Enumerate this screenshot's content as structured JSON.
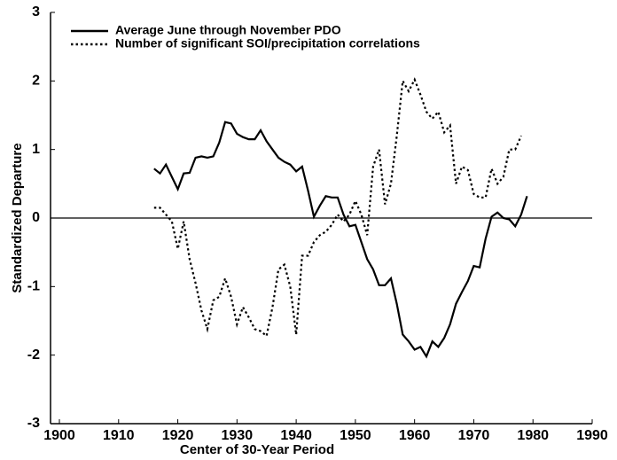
{
  "chart_data": {
    "type": "line",
    "xlabel": "Center of 30-Year Period",
    "ylabel": "Standardized Departure",
    "x": [
      1916,
      1917,
      1918,
      1919,
      1920,
      1921,
      1922,
      1923,
      1924,
      1925,
      1926,
      1927,
      1928,
      1929,
      1930,
      1931,
      1932,
      1933,
      1934,
      1935,
      1936,
      1937,
      1938,
      1939,
      1940,
      1941,
      1942,
      1943,
      1944,
      1945,
      1946,
      1947,
      1948,
      1949,
      1950,
      1951,
      1952,
      1953,
      1954,
      1955,
      1956,
      1957,
      1958,
      1959,
      1960,
      1961,
      1962,
      1963,
      1964,
      1965,
      1966,
      1967,
      1968,
      1969,
      1970,
      1971,
      1972,
      1973,
      1974,
      1975,
      1976,
      1977,
      1978,
      1979
    ],
    "series": [
      {
        "name": "Average June through November PDO",
        "color": "#000000",
        "style": "solid",
        "values": [
          0.72,
          0.65,
          0.78,
          0.6,
          0.42,
          0.65,
          0.66,
          0.88,
          0.9,
          0.88,
          0.9,
          1.1,
          1.4,
          1.38,
          1.23,
          1.18,
          1.15,
          1.15,
          1.28,
          1.12,
          1.0,
          0.88,
          0.82,
          0.78,
          0.68,
          0.75,
          0.4,
          0.02,
          0.18,
          0.32,
          0.3,
          0.3,
          0.05,
          -0.12,
          -0.1,
          -0.35,
          -0.6,
          -0.75,
          -0.98,
          -0.98,
          -0.88,
          -1.25,
          -1.7,
          -1.8,
          -1.92,
          -1.88,
          -2.02,
          -1.8,
          -1.88,
          -1.75,
          -1.55,
          -1.25,
          -1.08,
          -0.92,
          -0.7,
          -0.72,
          -0.3,
          0.02,
          0.08,
          0.0,
          -0.02,
          -0.12,
          0.05,
          0.32
        ]
      },
      {
        "name": "Number of significant SOI/precipitation correlations",
        "color": "#000000",
        "style": "dotted",
        "values": [
          0.15,
          0.15,
          0.05,
          -0.05,
          -0.45,
          -0.05,
          -0.6,
          -0.95,
          -1.35,
          -1.62,
          -1.2,
          -1.15,
          -0.88,
          -1.15,
          -1.55,
          -1.3,
          -1.45,
          -1.62,
          -1.65,
          -1.72,
          -1.3,
          -0.75,
          -0.68,
          -1.0,
          -1.7,
          -0.55,
          -0.55,
          -0.35,
          -0.25,
          -0.2,
          -0.1,
          0.05,
          -0.05,
          0.05,
          0.25,
          0.05,
          -0.25,
          0.75,
          1.0,
          0.2,
          0.5,
          1.2,
          2.0,
          1.85,
          2.02,
          1.8,
          1.55,
          1.45,
          1.55,
          1.25,
          1.35,
          0.5,
          0.75,
          0.7,
          0.35,
          0.3,
          0.3,
          0.72,
          0.5,
          0.6,
          1.0,
          1.0,
          1.2,
          null
        ]
      }
    ],
    "xlim": [
      1900,
      1990
    ],
    "xticks": [
      1900,
      1910,
      1920,
      1930,
      1940,
      1950,
      1960,
      1970,
      1980,
      1990
    ],
    "ylim": [
      -3,
      3
    ],
    "yticks": [
      -3,
      -2,
      -1,
      0,
      1,
      2,
      3
    ],
    "reference_line": 0,
    "legend": "upper left"
  }
}
